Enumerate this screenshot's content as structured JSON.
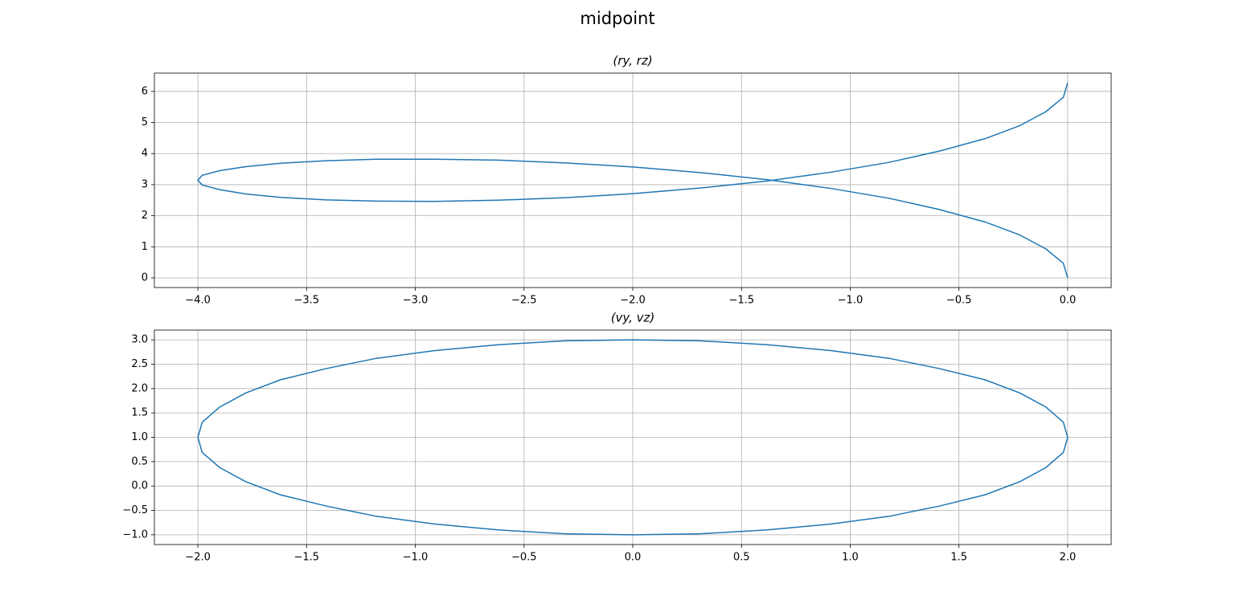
{
  "title": "midpoint",
  "chart_data": [
    {
      "type": "line",
      "title": "(ry, rz)",
      "color": "#1f77b4",
      "grid": true,
      "x": [
        0,
        -0.02,
        -0.1,
        -0.22,
        -0.38,
        -0.59,
        -0.82,
        -1.09,
        -1.38,
        -1.69,
        -2.0,
        -2.31,
        -2.62,
        -2.91,
        -3.18,
        -3.41,
        -3.62,
        -3.78,
        -3.9,
        -3.98,
        -4.0,
        -3.98,
        -3.9,
        -3.78,
        -3.62,
        -3.41,
        -3.18,
        -2.91,
        -2.62,
        -2.31,
        -2.0,
        -1.69,
        -1.38,
        -1.09,
        -0.82,
        -0.59,
        -0.38,
        -0.22,
        -0.1,
        -0.02,
        0
      ],
      "values": [
        0,
        0.47,
        0.93,
        1.38,
        1.8,
        2.2,
        2.56,
        2.88,
        3.16,
        3.39,
        3.57,
        3.7,
        3.79,
        3.82,
        3.82,
        3.77,
        3.69,
        3.58,
        3.45,
        3.3,
        3.14,
        2.99,
        2.84,
        2.7,
        2.59,
        2.51,
        2.47,
        2.46,
        2.5,
        2.58,
        2.71,
        2.89,
        3.12,
        3.4,
        3.72,
        4.08,
        4.48,
        4.9,
        5.35,
        5.81,
        6.28
      ],
      "xlim": [
        -4.2,
        0.2
      ],
      "ylim": [
        -0.31,
        6.59
      ],
      "xticks": [
        {
          "value": -4,
          "label": "−4.0"
        },
        {
          "value": -3.5,
          "label": "−3.5"
        },
        {
          "value": -3,
          "label": "−3.0"
        },
        {
          "value": -2.5,
          "label": "−2.5"
        },
        {
          "value": -2,
          "label": "−2.0"
        },
        {
          "value": -1.5,
          "label": "−1.5"
        },
        {
          "value": -1,
          "label": "−1.0"
        },
        {
          "value": -0.5,
          "label": "−0.5"
        },
        {
          "value": 0,
          "label": "0.0"
        }
      ],
      "yticks": [
        0,
        1,
        2,
        3,
        4,
        5,
        6
      ]
    },
    {
      "type": "line",
      "title": "(vy, vz)",
      "color": "#1f77b4",
      "grid": true,
      "x": [
        0,
        -0.31,
        -0.62,
        -0.91,
        -1.18,
        -1.41,
        -1.62,
        -1.78,
        -1.9,
        -1.98,
        -2.0,
        -1.98,
        -1.9,
        -1.78,
        -1.62,
        -1.41,
        -1.18,
        -0.91,
        -0.62,
        -0.31,
        0,
        0.31,
        0.62,
        0.91,
        1.18,
        1.41,
        1.62,
        1.78,
        1.9,
        1.98,
        2.0,
        1.98,
        1.9,
        1.78,
        1.62,
        1.41,
        1.18,
        0.91,
        0.62,
        0.31,
        0
      ],
      "values": [
        3,
        2.98,
        2.9,
        2.78,
        2.62,
        2.41,
        2.18,
        1.91,
        1.62,
        1.31,
        1.0,
        0.69,
        0.38,
        0.09,
        -0.18,
        -0.41,
        -0.62,
        -0.78,
        -0.9,
        -0.98,
        -1.0,
        -0.98,
        -0.9,
        -0.78,
        -0.62,
        -0.41,
        -0.18,
        0.09,
        0.38,
        0.69,
        1.0,
        1.31,
        1.62,
        1.91,
        2.18,
        2.41,
        2.62,
        2.78,
        2.9,
        2.98,
        3.0
      ],
      "xlim": [
        -2.2,
        2.2
      ],
      "ylim": [
        -1.2,
        3.2
      ],
      "xticks": [
        {
          "value": -2,
          "label": "−2.0"
        },
        {
          "value": -1.5,
          "label": "−1.5"
        },
        {
          "value": -1,
          "label": "−1.0"
        },
        {
          "value": -0.5,
          "label": "−0.5"
        },
        {
          "value": 0,
          "label": "0.0"
        },
        {
          "value": 0.5,
          "label": "0.5"
        },
        {
          "value": 1,
          "label": "1.0"
        },
        {
          "value": 1.5,
          "label": "1.5"
        },
        {
          "value": 2,
          "label": "2.0"
        }
      ],
      "yticks": [
        {
          "value": -1,
          "label": "−1.0"
        },
        {
          "value": -0.5,
          "label": "−0.5"
        },
        {
          "value": 0,
          "label": "0.0"
        },
        {
          "value": 0.5,
          "label": "0.5"
        },
        {
          "value": 1,
          "label": "1.0"
        },
        {
          "value": 1.5,
          "label": "1.5"
        },
        {
          "value": 2,
          "label": "2.0"
        },
        {
          "value": 2.5,
          "label": "2.5"
        },
        {
          "value": 3,
          "label": "3.0"
        }
      ]
    }
  ]
}
